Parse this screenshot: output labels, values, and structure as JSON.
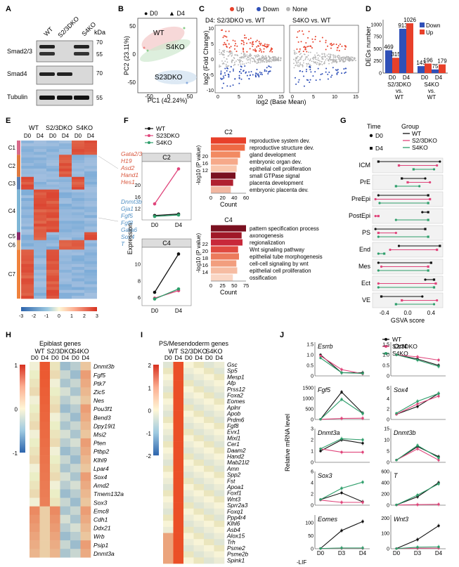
{
  "colors": {
    "wt": "#111111",
    "s2": "#e0457b",
    "s4": "#2e9e6b",
    "down": "#2f50b8",
    "up": "#e8402a",
    "none": "#b5b5b5",
    "heatLo": "#2c64ad",
    "heatHi": "#d7301f"
  },
  "panelA": {
    "label": "A",
    "cols": [
      "WT",
      "S2/3DKO",
      "S4KO"
    ],
    "kda": "kDa",
    "rows": [
      {
        "name": "Smad2/3",
        "markers": [
          "70",
          "55"
        ]
      },
      {
        "name": "Smad4",
        "markers": [
          "70"
        ]
      },
      {
        "name": "Tubulin",
        "markers": [
          "55"
        ]
      }
    ]
  },
  "panelB": {
    "label": "B",
    "legend": [
      {
        "sym": "●",
        "name": "D0"
      },
      {
        "sym": "▲",
        "name": "D4"
      }
    ],
    "xlabel": "PC1 (42.24%)",
    "ylabel": "PC2 (23.11%)",
    "xticks": [
      "-50",
      "0",
      "50"
    ],
    "yticks": [
      "50",
      "0",
      "-50"
    ],
    "groups": [
      "WT",
      "S4KO",
      "S23DKO"
    ]
  },
  "panelC": {
    "label": "C",
    "legend": [
      "Up",
      "Down",
      "None"
    ],
    "titles": [
      "D4: S2/3DKO vs. WT",
      "S4KO vs. WT"
    ],
    "xlabel": "log2 (Base Mean)",
    "ylabel": "log2 (Fold Change)",
    "yticks": [
      "10",
      "5",
      "0",
      "-5",
      "-10"
    ],
    "xticks": [
      "0",
      "5",
      "10",
      "15"
    ]
  },
  "panelD": {
    "label": "D",
    "ylabel": "DEGs number",
    "yticks": [
      "0",
      "250",
      "500",
      "750",
      "1000"
    ],
    "legend": [
      "Down",
      "Up"
    ],
    "days": [
      "D0",
      "D4"
    ],
    "groups": [
      "S2/3DKO vs. WT",
      "S4KO vs. WT"
    ],
    "chart_data": {
      "type": "bar",
      "categories": [
        "S2/3DKO D0",
        "S2/3DKO D4",
        "S4KO D0",
        "S4KO D4"
      ],
      "series": [
        {
          "name": "Down",
          "values": [
            469,
            913,
            143,
            75
          ]
        },
        {
          "name": "Up",
          "values": [
            315,
            1026,
            196,
            179
          ]
        }
      ],
      "labels": [
        [
          "469",
          "913",
          "143",
          "75"
        ],
        [
          "315",
          "1026",
          "196",
          "179"
        ]
      ],
      "ylim": [
        0,
        1100
      ]
    }
  },
  "panelE": {
    "label": "E",
    "groups": [
      "WT",
      "S2/3DKO",
      "S4KO"
    ],
    "days": [
      "D0",
      "D4",
      "D0",
      "D4",
      "D0",
      "D4"
    ],
    "clusters": [
      "C1",
      "C2",
      "C3",
      "C4",
      "C5",
      "C6",
      "C7"
    ],
    "genesRed": [
      "Gata2/3",
      "H19",
      "Asd2",
      "Hand1",
      "Hes1"
    ],
    "genesBlue": [
      "Dnmt3b",
      "Gja1",
      "Fgf5",
      "Fgf8",
      "Gata6",
      "Sox4",
      "T"
    ],
    "scale": [
      "-3",
      "-2",
      "-1",
      "0",
      "1",
      "2",
      "3"
    ]
  },
  "panelF": {
    "label": "F",
    "legend": [
      "WT",
      "S23DKO",
      "S4KO"
    ],
    "ylabel": "Expression",
    "xticks": [
      "D0",
      "D4"
    ],
    "panels": [
      {
        "title": "C2",
        "yticks": [
          "20",
          "16",
          "12"
        ],
        "chart_data": {
          "type": "line",
          "x": [
            "D0",
            "D4"
          ],
          "series": [
            {
              "name": "WT",
              "values": [
                9.5,
                10.0
              ]
            },
            {
              "name": "S23DKO",
              "values": [
                13.5,
                25.5
              ]
            },
            {
              "name": "S4KO",
              "values": [
                9.2,
                9.7
              ]
            }
          ],
          "ylim": [
            8,
            28
          ]
        },
        "barsTitle": "C2",
        "barsXlabel": "Count",
        "barsXticks": [
          "0",
          "20",
          "40",
          "60"
        ],
        "barsYticks": [
          "20",
          "16",
          "12"
        ],
        "terms": [
          "reproductive system dev.",
          "reproductive structure dev.",
          "gland development",
          "embryonic organ dev.",
          "epithelial cell proliferation",
          "small GTPase signal",
          "placenta development",
          "embryonic placenta dev."
        ],
        "counts": [
          60,
          58,
          50,
          46,
          44,
          42,
          38,
          34
        ]
      },
      {
        "title": "C4",
        "yticks": [
          "10",
          "8",
          "6"
        ],
        "chart_data": {
          "type": "line",
          "x": [
            "D0",
            "D4"
          ],
          "series": [
            {
              "name": "WT",
              "values": [
                6.6,
                11.2
              ]
            },
            {
              "name": "S23DKO",
              "values": [
                5.9,
                6.8
              ]
            },
            {
              "name": "S4KO",
              "values": [
                5.8,
                7.0
              ]
            }
          ],
          "ylim": [
            5,
            12
          ]
        },
        "barsTitle": "C4",
        "barsXlabel": "Count",
        "barsXticks": [
          "0",
          "25",
          "50",
          "75"
        ],
        "barsYticks": [
          "22",
          "20",
          "18",
          "16",
          "14"
        ],
        "terms": [
          "pattern specification process",
          "axonogenesis",
          "regionalization",
          "Wnt signaling pathway",
          "epithelial tube morphogenesis",
          "cell-cell signaling by wnt",
          "epithelial cell proliferation",
          "ossification"
        ],
        "counts": [
          80,
          70,
          72,
          62,
          64,
          58,
          60,
          50
        ]
      }
    ],
    "barsYlabel": "-log10 (P value)"
  },
  "panelG": {
    "label": "G",
    "legendTime": "Time",
    "legendGroup": "Group",
    "times": [
      "D0",
      "D4"
    ],
    "groups": [
      "WT",
      "S2/3DKO",
      "S4KO"
    ],
    "xlabel": "GSVA score",
    "xticks": [
      "-0.4",
      "0.0",
      "0.4"
    ],
    "chart_data": {
      "type": "dumbbell",
      "xlim": [
        -0.6,
        0.6
      ],
      "rows": [
        {
          "cat": "ICM",
          "WT": [
            0.55,
            -0.5
          ],
          "S2/3DKO": [
            0.5,
            -0.15
          ],
          "S4KO": [
            0.45,
            0.1
          ]
        },
        {
          "cat": "PrE",
          "WT": [
            0.3,
            -0.1
          ],
          "S2/3DKO": [
            0.38,
            0.0
          ],
          "S4KO": [
            0.2,
            -0.2
          ]
        },
        {
          "cat": "PreEpi",
          "WT": [
            -0.5,
            0.35
          ],
          "S2/3DKO": [
            -0.55,
            0.38
          ],
          "S4KO": [
            -0.48,
            0.35
          ]
        },
        {
          "cat": "PostEpi",
          "WT": [
            0.25,
            0.35
          ],
          "S2/3DKO": [
            -0.55,
            -0.5
          ],
          "S4KO": [
            -0.2,
            0.35
          ]
        },
        {
          "cat": "PS",
          "WT": [
            -0.55,
            0.3
          ],
          "S2/3DKO": [
            -0.2,
            -0.5
          ],
          "S4KO": [
            -0.5,
            0.35
          ]
        },
        {
          "cat": "End",
          "WT": [
            -0.15,
            0.55
          ],
          "S2/3DKO": [
            -0.3,
            0.5
          ],
          "S4KO": [
            -0.5,
            -0.4
          ]
        },
        {
          "cat": "Mes",
          "WT": [
            -0.5,
            0.4
          ],
          "S2/3DKO": [
            -0.45,
            0.35
          ],
          "S4KO": [
            -0.5,
            0.35
          ]
        },
        {
          "cat": "Ect",
          "WT": [
            0.3,
            0.45
          ],
          "S2/3DKO": [
            -0.5,
            0.48
          ],
          "S4KO": [
            -0.5,
            0.45
          ]
        },
        {
          "cat": "VE",
          "WT": [
            0.25,
            -0.45
          ],
          "S2/3DKO": [
            0.5,
            -0.1
          ],
          "S4KO": [
            0.45,
            -0.2
          ]
        }
      ]
    }
  },
  "panelH": {
    "label": "H",
    "title": "Epiblast genes",
    "groups": [
      "WT",
      "S2/3DKO",
      "S4KO"
    ],
    "days": [
      "D0",
      "D4",
      "D0",
      "D4",
      "D0",
      "D4"
    ],
    "scale": [
      "1",
      "0",
      "-1"
    ],
    "genes": [
      "Dnmt3b",
      "Fgf5",
      "Ptk7",
      "Zic5",
      "Nes",
      "Pou3f1",
      "Bend3",
      "Dpy19l1",
      "Msi2",
      "Pten",
      "Ptbp2",
      "Klhl9",
      "Lpar4",
      "Sox4",
      "Amd2",
      "Tmem132a",
      "Sox3",
      "Emc8",
      "Cdh1",
      "Ddx21",
      "Wrb",
      "Psip1",
      "Dnmt3a"
    ]
  },
  "panelI": {
    "label": "I",
    "title": "PS/Mesendoderm genes",
    "groups": [
      "WT",
      "S2/3DKO",
      "S4KO"
    ],
    "days": [
      "D0",
      "D4",
      "D0",
      "D4",
      "D0",
      "D4"
    ],
    "scale": [
      "2",
      "1",
      "0",
      "-1",
      "-2"
    ],
    "genes": [
      "Gsc",
      "Sp5",
      "Mesp1",
      "Afp",
      "Prss12",
      "Foxa2",
      "Eomes",
      "Aplnr",
      "Apob",
      "Prdm6",
      "Fgf8",
      "Evx1",
      "Mixl1",
      "Cer1",
      "Daam2",
      "Hand2",
      "Mab21l2",
      "Amn",
      "Spp2",
      "Fst",
      "Apoa1",
      "Foxf1",
      "Wnt3",
      "Sprr2a3",
      "Foxq1",
      "Ppp4r4",
      "Klhl6",
      "Asb4",
      "Alox15",
      "Trh",
      "Psme2",
      "Psme2b",
      "Spink1"
    ]
  },
  "panelJ": {
    "label": "J",
    "legend": [
      "WT",
      "S2/3DKO",
      "S4KO"
    ],
    "ylabel": "Relative mRNA level",
    "xticks": [
      "D0",
      "D3",
      "D4"
    ],
    "xprefix": "-LIF",
    "charts": [
      {
        "gene": "Esrrb",
        "yticks": [
          "1.5",
          "1.0",
          "0.5",
          "0"
        ],
        "chart_data": {
          "type": "line",
          "x": [
            "D0",
            "D3",
            "D4"
          ],
          "ylim": [
            0,
            1.6
          ],
          "series": [
            {
              "name": "WT",
              "values": [
                1.0,
                0.15,
                0.15
              ]
            },
            {
              "name": "S2/3DKO",
              "values": [
                0.95,
                0.3,
                0.1
              ]
            },
            {
              "name": "S4KO",
              "values": [
                0.85,
                0.15,
                0.12
              ]
            }
          ]
        }
      },
      {
        "gene": "Oct4",
        "yticks": [
          "1.5",
          "1.0",
          "0.5",
          "0"
        ],
        "chart_data": {
          "type": "line",
          "x": [
            "D0",
            "D3",
            "D4"
          ],
          "ylim": [
            0,
            1.6
          ],
          "series": [
            {
              "name": "WT",
              "values": [
                1.0,
                0.8,
                0.5
              ]
            },
            {
              "name": "S2/3DKO",
              "values": [
                1.0,
                0.9,
                0.75
              ]
            },
            {
              "name": "S4KO",
              "values": [
                1.0,
                0.75,
                0.45
              ]
            }
          ]
        }
      },
      {
        "gene": "Fgf5",
        "yticks": [
          "1500",
          "1000",
          "500",
          "0"
        ],
        "chart_data": {
          "type": "line",
          "x": [
            "D0",
            "D3",
            "D4"
          ],
          "ylim": [
            0,
            1600
          ],
          "series": [
            {
              "name": "WT",
              "values": [
                10,
                1300,
                300
              ]
            },
            {
              "name": "S2/3DKO",
              "values": [
                5,
                50,
                60
              ]
            },
            {
              "name": "S4KO",
              "values": [
                10,
                950,
                280
              ]
            }
          ]
        }
      },
      {
        "gene": "Sox4",
        "yticks": [
          "6",
          "4",
          "2",
          "0"
        ],
        "chart_data": {
          "type": "line",
          "x": [
            "D0",
            "D3",
            "D4"
          ],
          "ylim": [
            0,
            6.5
          ],
          "series": [
            {
              "name": "WT",
              "values": [
                1.0,
                2.5,
                5.0
              ]
            },
            {
              "name": "S2/3DKO",
              "values": [
                1.0,
                3.0,
                4.5
              ]
            },
            {
              "name": "S4KO",
              "values": [
                1.2,
                3.5,
                5.0
              ]
            }
          ]
        }
      },
      {
        "gene": "Dnmt3a",
        "yticks": [
          "3",
          "2",
          "1",
          "0"
        ],
        "chart_data": {
          "type": "line",
          "x": [
            "D0",
            "D3",
            "D4"
          ],
          "ylim": [
            0,
            3
          ],
          "series": [
            {
              "name": "WT",
              "values": [
                1.0,
                2.0,
                1.7
              ]
            },
            {
              "name": "S2/3DKO",
              "values": [
                1.2,
                0.9,
                0.9
              ]
            },
            {
              "name": "S4KO",
              "values": [
                1.2,
                2.1,
                2.0
              ]
            }
          ]
        }
      },
      {
        "gene": "Dnmt3b",
        "yticks": [
          "15",
          "10",
          "5",
          "0"
        ],
        "chart_data": {
          "type": "line",
          "x": [
            "D0",
            "D3",
            "D4"
          ],
          "ylim": [
            0,
            15
          ],
          "series": [
            {
              "name": "WT",
              "values": [
                1,
                7,
                2.5
              ]
            },
            {
              "name": "S2/3DKO",
              "values": [
                1,
                6,
                1
              ]
            },
            {
              "name": "S4KO",
              "values": [
                1,
                7.5,
                2
              ]
            }
          ]
        }
      },
      {
        "gene": "Sox3",
        "yticks": [
          "6",
          "4",
          "2",
          "0"
        ],
        "chart_data": {
          "type": "line",
          "x": [
            "D0",
            "D3",
            "D4"
          ],
          "ylim": [
            0,
            6
          ],
          "series": [
            {
              "name": "WT",
              "values": [
                1.0,
                2.2,
                0.6
              ]
            },
            {
              "name": "S2/3DKO",
              "values": [
                0.9,
                0.5,
                0.5
              ]
            },
            {
              "name": "S4KO",
              "values": [
                1.0,
                3.0,
                4.1
              ]
            }
          ]
        }
      },
      {
        "gene": "T",
        "yticks": [
          "600",
          "400",
          "200",
          "0"
        ],
        "chart_data": {
          "type": "line",
          "x": [
            "D0",
            "D3",
            "D4"
          ],
          "ylim": [
            0,
            600
          ],
          "series": [
            {
              "name": "WT",
              "values": [
                5,
                150,
                400
              ]
            },
            {
              "name": "S2/3DKO",
              "values": [
                3,
                10,
                15
              ]
            },
            {
              "name": "S4KO",
              "values": [
                5,
                180,
                380
              ]
            }
          ]
        }
      },
      {
        "gene": "Eomes",
        "yticks": [
          "100",
          "50",
          "0"
        ],
        "chart_data": {
          "type": "line",
          "x": [
            "D0",
            "D3",
            "D4"
          ],
          "ylim": [
            0,
            130
          ],
          "series": [
            {
              "name": "WT",
              "values": [
                1,
                70,
                105
              ]
            },
            {
              "name": "S2/3DKO",
              "values": [
                1,
                2,
                2
              ]
            },
            {
              "name": "S4KO",
              "values": [
                1,
                3,
                3
              ]
            }
          ]
        }
      },
      {
        "gene": "Wnt3",
        "yticks": [
          "200",
          "100",
          "0"
        ],
        "chart_data": {
          "type": "line",
          "x": [
            "D0",
            "D3",
            "D4"
          ],
          "ylim": [
            0,
            220
          ],
          "series": [
            {
              "name": "WT",
              "values": [
                1,
                60,
                150
              ]
            },
            {
              "name": "S2/3DKO",
              "values": [
                1,
                3,
                4
              ]
            },
            {
              "name": "S4KO",
              "values": [
                1,
                10,
                12
              ]
            }
          ]
        }
      }
    ]
  }
}
